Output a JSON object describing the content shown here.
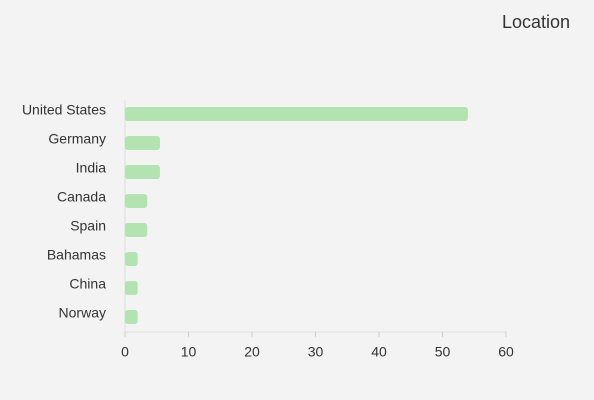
{
  "chart_data": {
    "type": "hbar",
    "title": "Location",
    "categories": [
      "United States",
      "Germany",
      "India",
      "Canada",
      "Spain",
      "Bahamas",
      "China",
      "Norway"
    ],
    "values": [
      54,
      5.5,
      5.5,
      3.5,
      3.5,
      2,
      2,
      2
    ],
    "color": "#b3e3b0",
    "xlim": [
      0,
      60
    ],
    "xticks": [
      0,
      10,
      20,
      30,
      40,
      50,
      60
    ]
  }
}
